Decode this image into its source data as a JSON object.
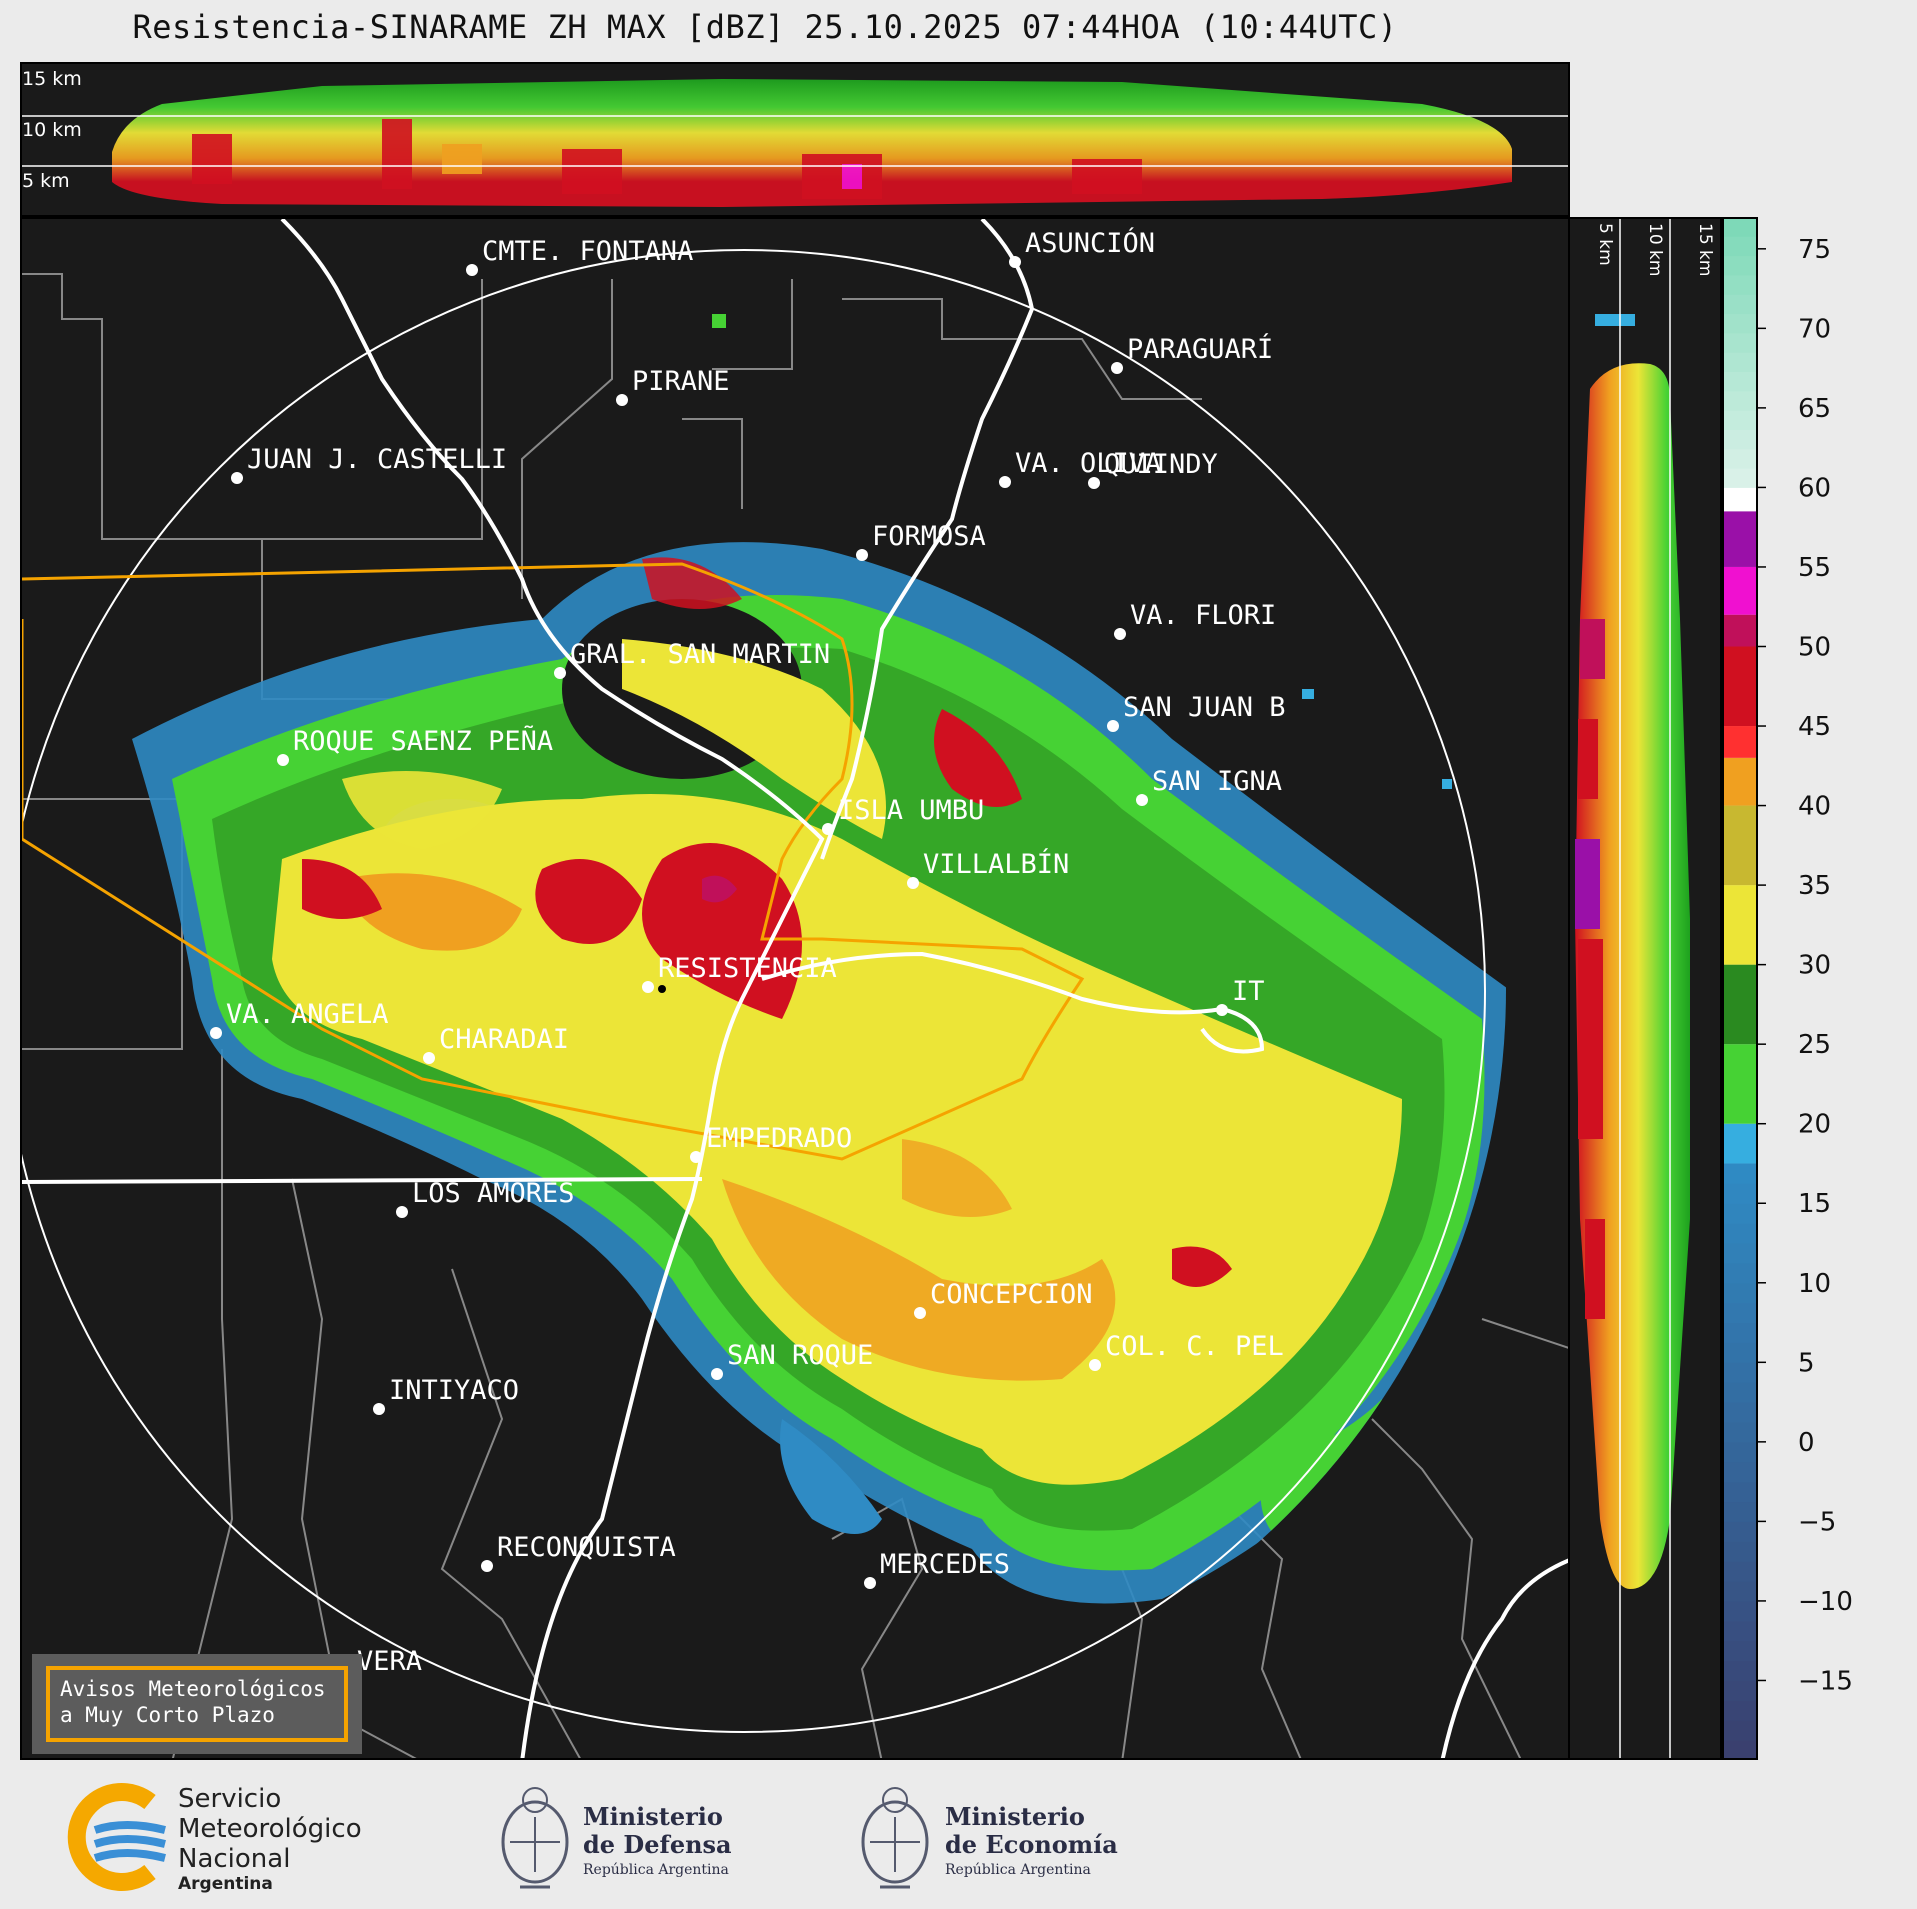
{
  "title": "Resistencia-SINARAME ZH MAX [dBZ] 25.10.2025 07:44HOA (10:44UTC)",
  "height_labels": [
    "15 km",
    "10 km",
    "5 km"
  ],
  "cities": [
    {
      "name": "CMTE. FONTANA"
    },
    {
      "name": "ASUNCIÓN"
    },
    {
      "name": "PARAGUARÍ"
    },
    {
      "name": "PIRANE"
    },
    {
      "name": "JUAN J. CASTELLI"
    },
    {
      "name": "VA. OLIVA"
    },
    {
      "name": "QUIINDY"
    },
    {
      "name": "FORMOSA"
    },
    {
      "name": "VA. FLORI"
    },
    {
      "name": "GRAL. SAN MARTIN"
    },
    {
      "name": "SAN JUAN B"
    },
    {
      "name": "ROQUE SAENZ PEÑA"
    },
    {
      "name": "SAN IGNA"
    },
    {
      "name": "ISLA UMBU"
    },
    {
      "name": "VILLALBÍN"
    },
    {
      "name": "RESISTENCIA"
    },
    {
      "name": "VA. ANGELA"
    },
    {
      "name": "CHARADAI"
    },
    {
      "name": "IT"
    },
    {
      "name": "EMPEDRADO"
    },
    {
      "name": "LOS AMORES"
    },
    {
      "name": "CONCEPCION"
    },
    {
      "name": "COL. C. PEL"
    },
    {
      "name": "SAN ROQUE"
    },
    {
      "name": "INTIYACO"
    },
    {
      "name": "RECONQUISTA"
    },
    {
      "name": "MERCEDES"
    },
    {
      "name": "VERA"
    }
  ],
  "avisos": {
    "line1": "Avisos Meteorológicos",
    "line2": "a Muy Corto Plazo"
  },
  "colorbar": {
    "ticks": [
      "75",
      "70",
      "65",
      "60",
      "55",
      "50",
      "45",
      "40",
      "35",
      "30",
      "25",
      "20",
      "15",
      "10",
      "5",
      "0",
      "−5",
      "−10",
      "−15"
    ],
    "segments": [
      {
        "lo": -20,
        "hi": 17.5,
        "from": "#3a3f6e",
        "to": "#2f8bc4"
      },
      {
        "lo": 17.5,
        "hi": 20,
        "color": "#36aee0"
      },
      {
        "lo": 20,
        "hi": 25,
        "color": "#46d234"
      },
      {
        "lo": 25,
        "hi": 30,
        "color": "#2a8a20"
      },
      {
        "lo": 30,
        "hi": 35,
        "color": "#ece537"
      },
      {
        "lo": 35,
        "hi": 40,
        "color": "#c8b830"
      },
      {
        "lo": 40,
        "hi": 43,
        "color": "#f0a020"
      },
      {
        "lo": 43,
        "hi": 45,
        "color": "#ff3030"
      },
      {
        "lo": 45,
        "hi": 50,
        "color": "#d01020"
      },
      {
        "lo": 50,
        "hi": 52,
        "color": "#c0105a"
      },
      {
        "lo": 52,
        "hi": 55,
        "color": "#f010d0"
      },
      {
        "lo": 55,
        "hi": 58.5,
        "color": "#9a10a8"
      },
      {
        "lo": 58.5,
        "hi": 60,
        "color": "#ffffff"
      },
      {
        "lo": 60,
        "hi": 77,
        "from": "#ddf2ea",
        "to": "#7ad8b6"
      }
    ]
  },
  "footer": {
    "smn": {
      "line1": "Servicio",
      "line2": "Meteorológico",
      "line3": "Nacional",
      "line4": "Argentina"
    },
    "defensa": {
      "line1": "Ministerio",
      "line2": "de Defensa",
      "line3": "República Argentina"
    },
    "economia": {
      "line1": "Ministerio",
      "line2": "de Economía",
      "line3": "República Argentina"
    }
  },
  "colors": {
    "background": "#1a1a1a",
    "range_ring": "#ffffff",
    "rivers_borders": "#ffffff",
    "departments": "#888888",
    "warning_polygon": "#f5a300"
  }
}
